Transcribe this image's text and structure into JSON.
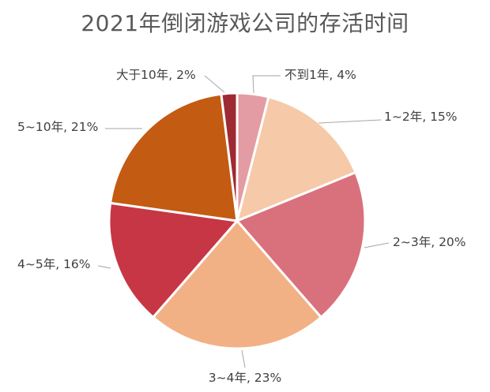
{
  "chart_data": {
    "type": "pie",
    "title": "2021年倒闭游戏公司的存活时间",
    "start_angle_deg": 0,
    "direction": "clockwise",
    "slices": [
      {
        "label": "不到1年",
        "value": 4,
        "display": "不到1年, 4%",
        "color": "#E39CA3"
      },
      {
        "label": "1~2年",
        "value": 15,
        "display": "1~2年, 15%",
        "color": "#F6C9A8"
      },
      {
        "label": "2~3年",
        "value": 20,
        "display": "2~3年, 20%",
        "color": "#D9717D"
      },
      {
        "label": "3~4年",
        "value": 23,
        "display": "3~4年, 23%",
        "color": "#F2B185"
      },
      {
        "label": "4~5年",
        "value": 16,
        "display": "4~5年, 16%",
        "color": "#C73645"
      },
      {
        "label": "5~10年",
        "value": 21,
        "display": "5~10年, 21%",
        "color": "#C35B12"
      },
      {
        "label": "大于10年",
        "value": 2,
        "display": "大于10年, 2%",
        "color": "#9E2A33"
      }
    ]
  }
}
